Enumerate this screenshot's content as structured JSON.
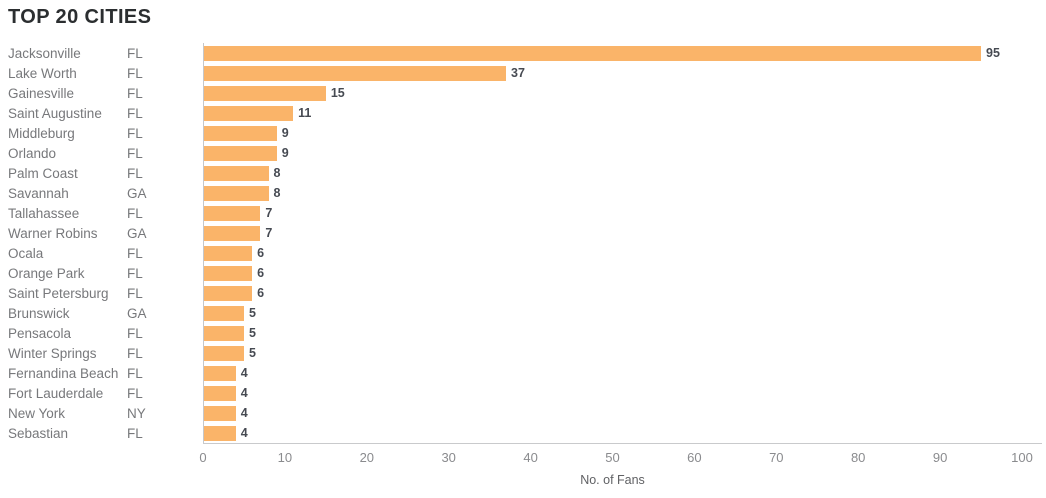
{
  "page": {
    "title": "TOP 20 CITIES"
  },
  "colors": {
    "bar": "#FAB469",
    "title": "#2B2E30",
    "row_label": "#77787B",
    "value_label": "#464A52",
    "tick_label": "#8A8B8E",
    "axis_line": "#C9CACC",
    "background": "#FFFFFF"
  },
  "chart_data": {
    "type": "bar",
    "orientation": "horizontal",
    "title": "TOP 20 CITIES",
    "xlabel": "No. of Fans",
    "ylabel": "",
    "xlim": [
      0,
      100
    ],
    "xticks": [
      0,
      10,
      20,
      30,
      40,
      50,
      60,
      70,
      80,
      90,
      100
    ],
    "grid": false,
    "value_labels": true,
    "categories": [
      "Jacksonville",
      "Lake Worth",
      "Gainesville",
      "Saint Augustine",
      "Middleburg",
      "Orlando",
      "Palm Coast",
      "Savannah",
      "Tallahassee",
      "Warner Robins",
      "Ocala",
      "Orange Park",
      "Saint Petersburg",
      "Brunswick",
      "Pensacola",
      "Winter Springs",
      "Fernandina Beach",
      "Fort Lauderdale",
      "New York",
      "Sebastian"
    ],
    "states": [
      "FL",
      "FL",
      "FL",
      "FL",
      "FL",
      "FL",
      "FL",
      "GA",
      "FL",
      "GA",
      "FL",
      "FL",
      "FL",
      "GA",
      "FL",
      "FL",
      "FL",
      "FL",
      "NY",
      "FL"
    ],
    "values": [
      95,
      37,
      15,
      11,
      9,
      9,
      8,
      8,
      7,
      7,
      6,
      6,
      6,
      5,
      5,
      5,
      4,
      4,
      4,
      4
    ]
  }
}
